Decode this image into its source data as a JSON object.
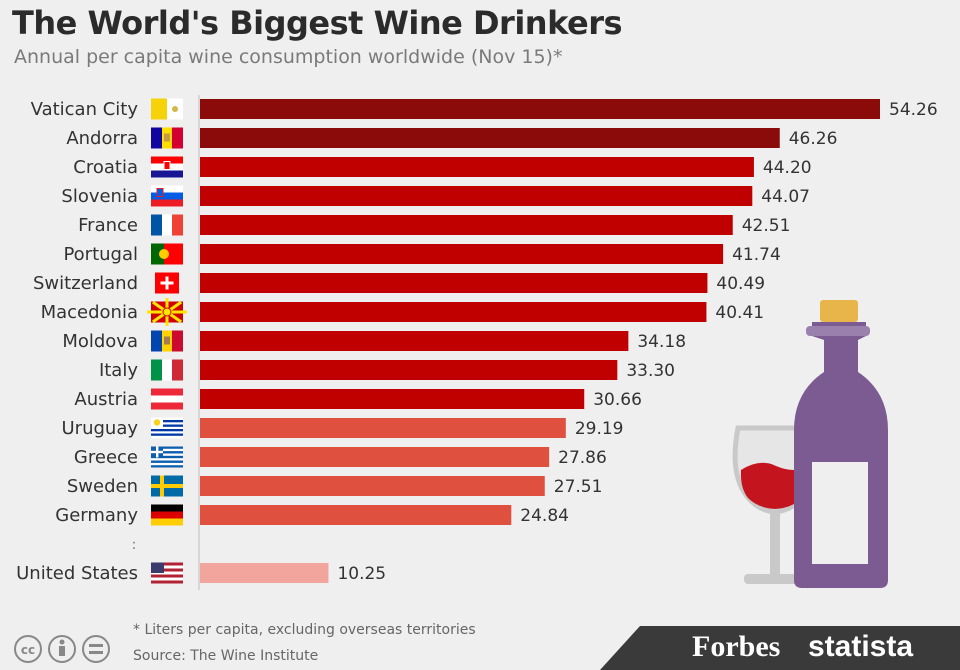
{
  "header": {
    "title": "The World's Biggest Wine Drinkers",
    "subtitle": "Annual per capita wine consumption worldwide (Nov 15)*"
  },
  "chart_data": {
    "type": "bar",
    "orientation": "horizontal",
    "title": "The World's Biggest Wine Drinkers",
    "subtitle": "Annual per capita wine consumption worldwide (Nov 15)*",
    "categories": [
      "Vatican City",
      "Andorra",
      "Croatia",
      "Slovenia",
      "France",
      "Portugal",
      "Switzerland",
      "Macedonia",
      "Moldova",
      "Italy",
      "Austria",
      "Uruguay",
      "Greece",
      "Sweden",
      "Germany",
      "United States"
    ],
    "values": [
      54.26,
      46.26,
      44.2,
      44.07,
      42.51,
      41.74,
      40.49,
      40.41,
      34.18,
      33.3,
      30.66,
      29.19,
      27.86,
      27.51,
      24.84,
      10.25
    ],
    "value_labels": [
      "54.26",
      "46.26",
      "44.20",
      "44.07",
      "42.51",
      "41.74",
      "40.49",
      "40.41",
      "34.18",
      "33.30",
      "30.66",
      "29.19",
      "27.86",
      "27.51",
      "24.84",
      "10.25"
    ],
    "bar_colors": [
      "#8b0a0a",
      "#8b0a0a",
      "#c00000",
      "#c00000",
      "#c00000",
      "#c00000",
      "#c00000",
      "#c00000",
      "#c00000",
      "#c00000",
      "#c00000",
      "#e0503f",
      "#e0503f",
      "#e0503f",
      "#e0503f",
      "#f2a59d"
    ],
    "flags": [
      "vatican-flag",
      "andorra-flag",
      "croatia-flag",
      "slovenia-flag",
      "france-flag",
      "portugal-flag",
      "switzerland-flag",
      "macedonia-flag",
      "moldova-flag",
      "italy-flag",
      "austria-flag",
      "uruguay-flag",
      "greece-flag",
      "sweden-flag",
      "germany-flag",
      "usa-flag"
    ],
    "gap_marker": ":",
    "xlim": [
      0,
      54.26
    ],
    "grid": false,
    "xlabel": "",
    "ylabel": ""
  },
  "footer": {
    "footnote": "* Liters per capita, excluding overseas territories",
    "source": "Source: The Wine Institute",
    "brands": [
      "Forbes",
      "statista"
    ]
  },
  "colors": {
    "background": "#efefef",
    "dark_red": "#8b0a0a",
    "red": "#c00000",
    "light_red": "#e0503f",
    "pink": "#f2a59d",
    "bottle": "#7b5b92",
    "band": "#3a3a3a"
  }
}
